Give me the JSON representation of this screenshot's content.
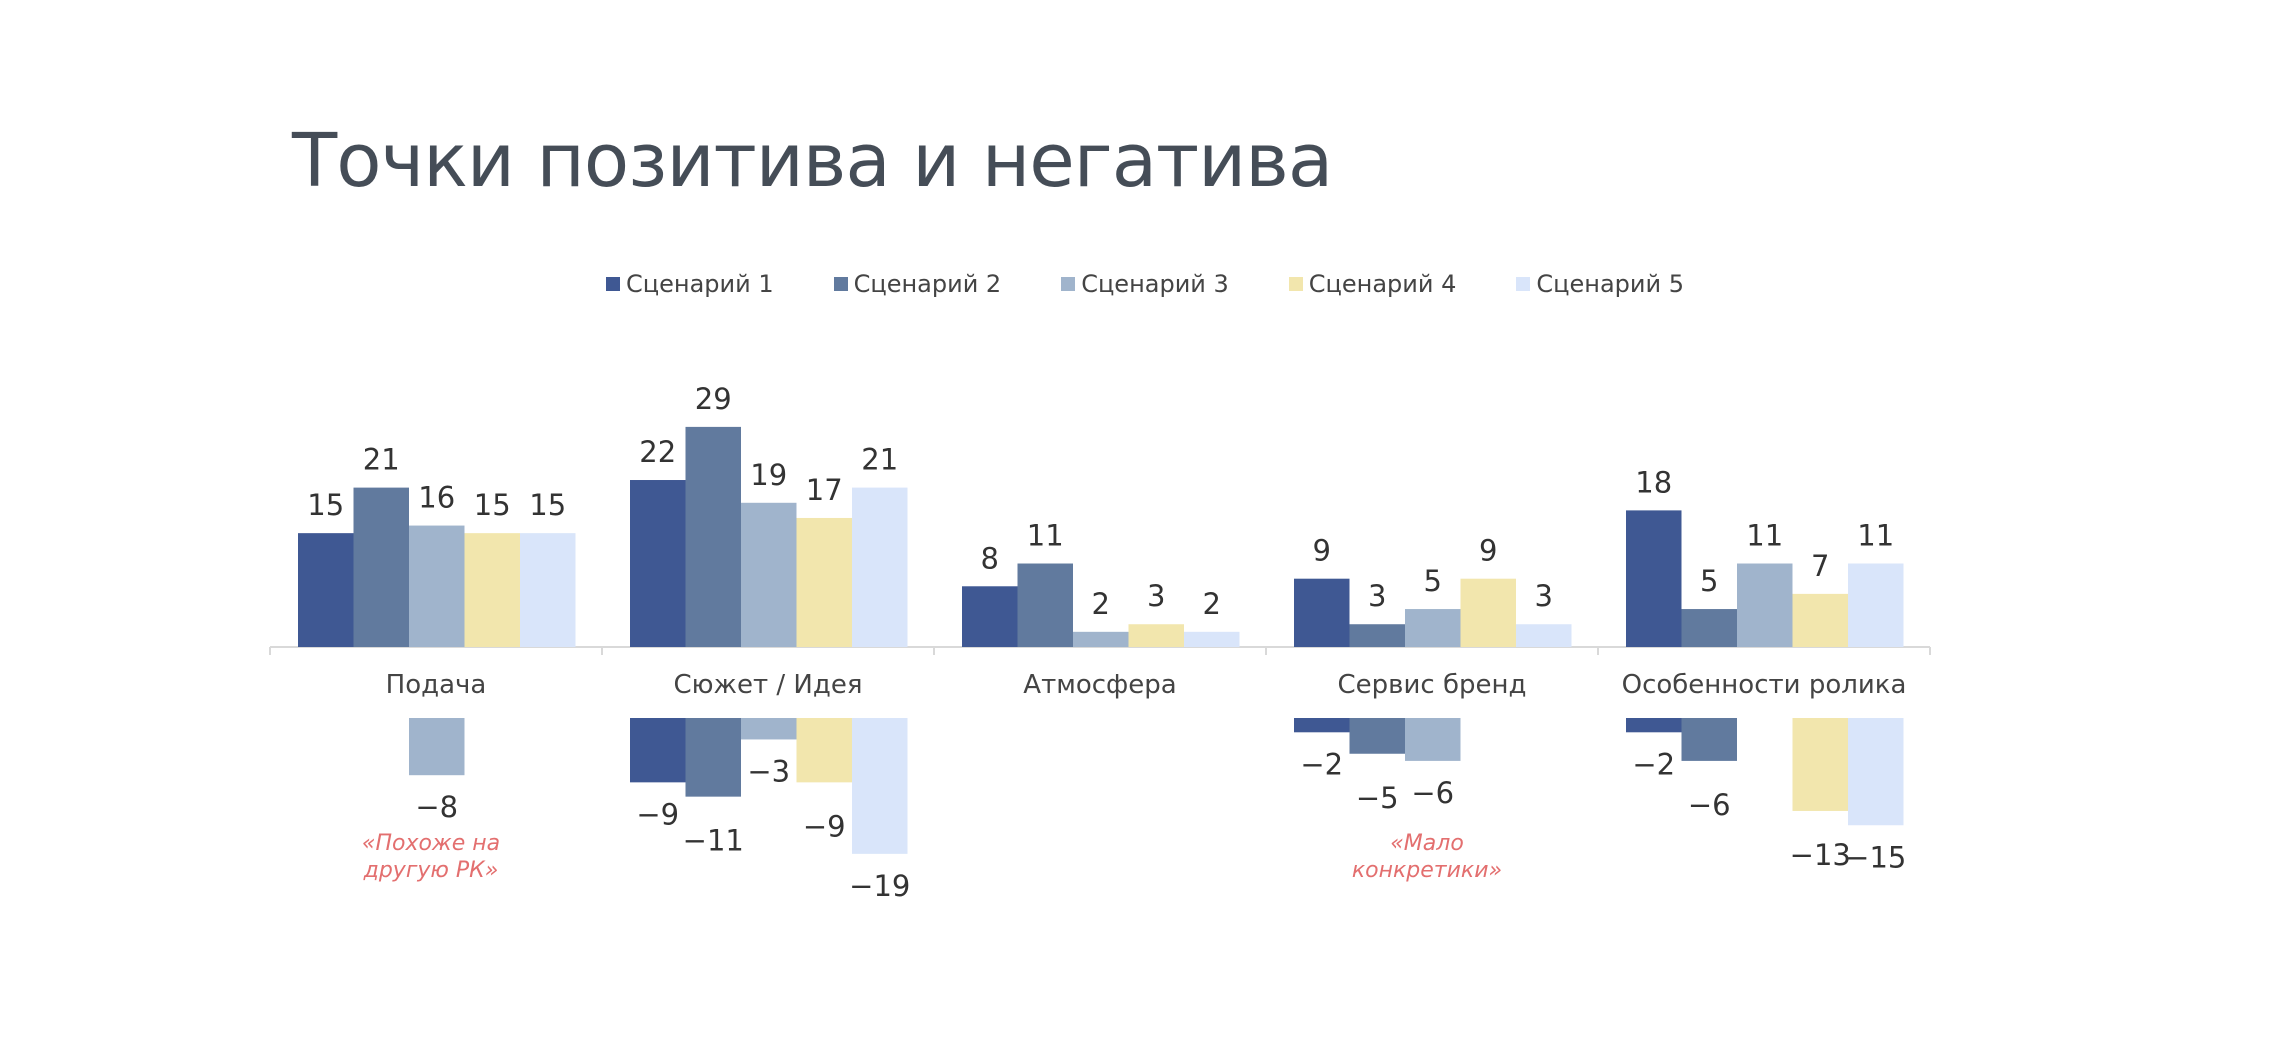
{
  "chart_data": {
    "type": "bar",
    "title": "Точки позитива и негатива",
    "categories": [
      "Подача",
      "Сюжет / Идея",
      "Атмосфера",
      "Сервис бренд",
      "Особенности ролика"
    ],
    "legend_position": "top",
    "series": [
      {
        "name": "Сценарий 1",
        "color": "#3f5893",
        "positive": [
          15,
          22,
          8,
          9,
          18
        ],
        "negative": [
          null,
          -9,
          null,
          -2,
          -2
        ]
      },
      {
        "name": "Сценарий 2",
        "color": "#617a9e",
        "positive": [
          21,
          29,
          11,
          3,
          5
        ],
        "negative": [
          null,
          -11,
          null,
          -5,
          -6
        ]
      },
      {
        "name": "Сценарий 3",
        "color": "#a0b4cc",
        "positive": [
          16,
          19,
          2,
          5,
          11
        ],
        "negative": [
          -8,
          -3,
          null,
          -6,
          null
        ]
      },
      {
        "name": "Сценарий 4",
        "color": "#f2e6ad",
        "positive": [
          15,
          17,
          3,
          9,
          7
        ],
        "negative": [
          null,
          -9,
          null,
          null,
          -13
        ]
      },
      {
        "name": "Сценарий 5",
        "color": "#d9e5fa",
        "positive": [
          15,
          21,
          2,
          3,
          11
        ],
        "negative": [
          null,
          -19,
          null,
          null,
          -15
        ]
      }
    ],
    "annotations": [
      {
        "category": "Подача",
        "lines": [
          "«Похоже на",
          "другую РК»"
        ]
      },
      {
        "category": "Сервис бренд",
        "lines": [
          "«Мало",
          "конкретики»"
        ]
      }
    ],
    "grid": false
  }
}
